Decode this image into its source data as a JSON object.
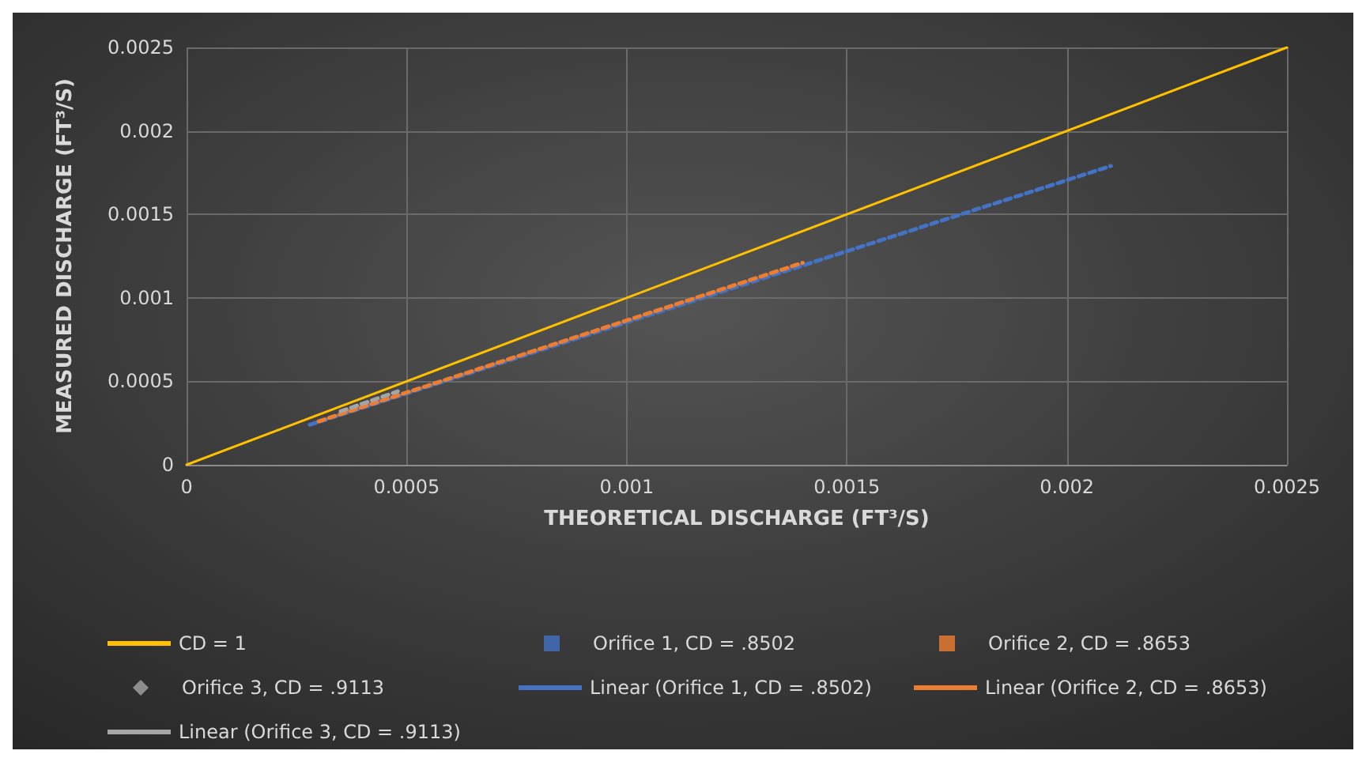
{
  "chart_data": {
    "type": "line",
    "xlabel": "THEORETICAL DISCHARGE (FT³/S)",
    "ylabel": "MEASURED DISCHARGE (FT³/S)",
    "xlim": [
      0,
      0.0025
    ],
    "xticks": [
      0,
      0.0005,
      0.001,
      0.0015,
      0.002,
      0.0025
    ],
    "ylim": [
      0,
      0.0025
    ],
    "yticks": [
      0,
      0.0005,
      0.001,
      0.0015,
      0.002,
      0.0025
    ],
    "grid": true,
    "legend": "bottom",
    "marker": "none",
    "series": [
      {
        "name": "CD = 1",
        "line_style": "solid",
        "color": "#ffc000",
        "x": [
          0,
          0.0025
        ],
        "values": [
          0,
          0.0025
        ]
      },
      {
        "name": "Orifice 1, CD = .8502",
        "type": "scatter",
        "marker": "square",
        "color": "#4472c4"
      },
      {
        "name": "Orifice 2, CD = .8653",
        "type": "scatter",
        "marker": "square",
        "color": "#ed7d31"
      },
      {
        "name": "Orifice 3, CD = .9113",
        "type": "scatter",
        "marker": "diamond",
        "color": "#a5a5a5"
      },
      {
        "name": "Linear (Orifice 1, CD = .8502)",
        "line_style": "dashed",
        "color": "#4472c4",
        "x": [
          0.00028,
          0.0021
        ],
        "values": [
          0.00024,
          0.00179
        ]
      },
      {
        "name": "Linear (Orifice 2, CD = .8653)",
        "line_style": "dashed",
        "color": "#ed7d31",
        "x": [
          0.0003,
          0.0014
        ],
        "values": [
          0.00026,
          0.00121
        ]
      },
      {
        "name": "Linear (Orifice 3, CD = .9113)",
        "line_style": "dashed",
        "color": "#a5a5a5",
        "x": [
          0.00035,
          0.00048
        ],
        "values": [
          0.00032,
          0.00044
        ]
      }
    ]
  }
}
